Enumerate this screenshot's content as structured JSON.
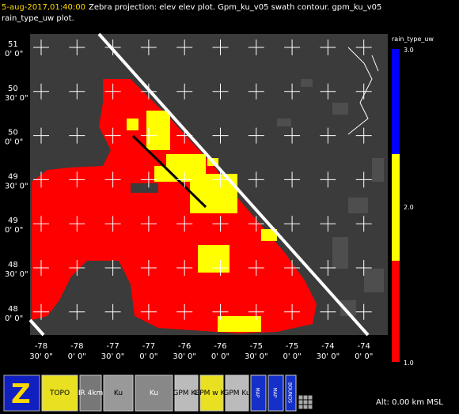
{
  "header": {
    "timestamp": "5-aug-2017,01:40:00",
    "description": "Zebra projection: elev elev  plot.  Gpm_ku_v05 swath contour.  gpm_ku_v05",
    "description2": "rain_type_uw  plot."
  },
  "map": {
    "lat_labels": [
      {
        "deg": "51",
        "min": "0' 0\""
      },
      {
        "deg": "50",
        "min": "30' 0\""
      },
      {
        "deg": "50",
        "min": "0' 0\""
      },
      {
        "deg": "49",
        "min": "30' 0\""
      },
      {
        "deg": "49",
        "min": "0' 0\""
      },
      {
        "deg": "48",
        "min": "30' 0\""
      },
      {
        "deg": "48",
        "min": "0' 0\""
      }
    ],
    "lon_labels": [
      {
        "deg": "-78",
        "min": "30' 0\""
      },
      {
        "deg": "-78",
        "min": "0' 0\""
      },
      {
        "deg": "-77",
        "min": "30' 0\""
      },
      {
        "deg": "-77",
        "min": "0' 0\""
      },
      {
        "deg": "-76",
        "min": "30' 0\""
      },
      {
        "deg": "-76",
        "min": "0' 0\""
      },
      {
        "deg": "-75",
        "min": "30' 0\""
      },
      {
        "deg": "-75",
        "min": "0' 0\""
      },
      {
        "deg": "-74",
        "min": "30' 0\""
      },
      {
        "deg": "-74",
        "min": "0' 0\""
      }
    ]
  },
  "colorbar": {
    "title": "rain_type_uw",
    "labels": [
      "3.0",
      "2.0",
      "1.0"
    ]
  },
  "toolbar": {
    "buttons": [
      "TOPO",
      "IR 4km",
      "Ku",
      "Ku",
      "GPM Ku",
      "GPM w Ku",
      "GPM Ku",
      "MAP",
      "MAP",
      "BOUNDS"
    ]
  },
  "status": {
    "altitude": "Alt: 0.00 km MSL"
  }
}
